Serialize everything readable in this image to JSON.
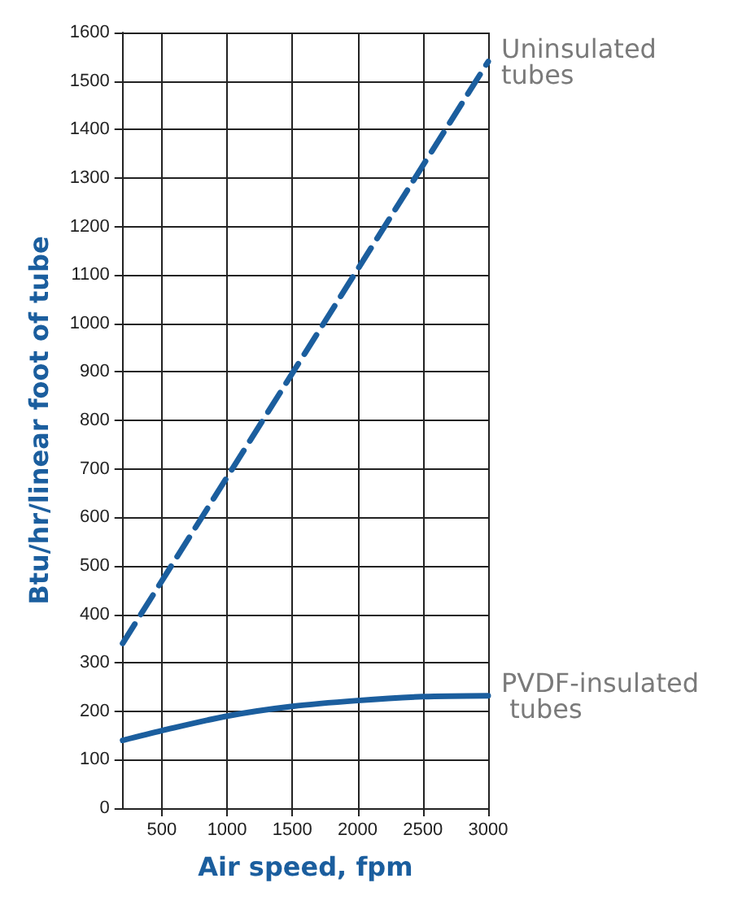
{
  "chart_data": {
    "type": "line",
    "xlabel": "Air speed, fpm",
    "ylabel": "Btu/hr/linear foot of tube",
    "series": [
      {
        "name": "Uninsulated tubes",
        "color": "#1b5e9e",
        "line_style": "dashed",
        "x": [
          200,
          3000
        ],
        "values": [
          340,
          1540
        ]
      },
      {
        "name": "PVDF-insulated tubes",
        "color": "#1b5e9e",
        "line_style": "solid",
        "x": [
          200,
          500,
          1000,
          1500,
          2000,
          2500,
          3000
        ],
        "values": [
          140,
          160,
          190,
          210,
          222,
          230,
          232
        ]
      }
    ],
    "xlim": [
      200,
      3000
    ],
    "xticks": [
      500,
      1000,
      1500,
      2000,
      2500,
      3000
    ],
    "ylim": [
      0,
      1600
    ],
    "yticks": [
      0,
      100,
      200,
      300,
      400,
      500,
      600,
      700,
      800,
      900,
      1000,
      1100,
      1200,
      1300,
      1400,
      1500,
      1600
    ],
    "grid": true,
    "marker": "none"
  }
}
